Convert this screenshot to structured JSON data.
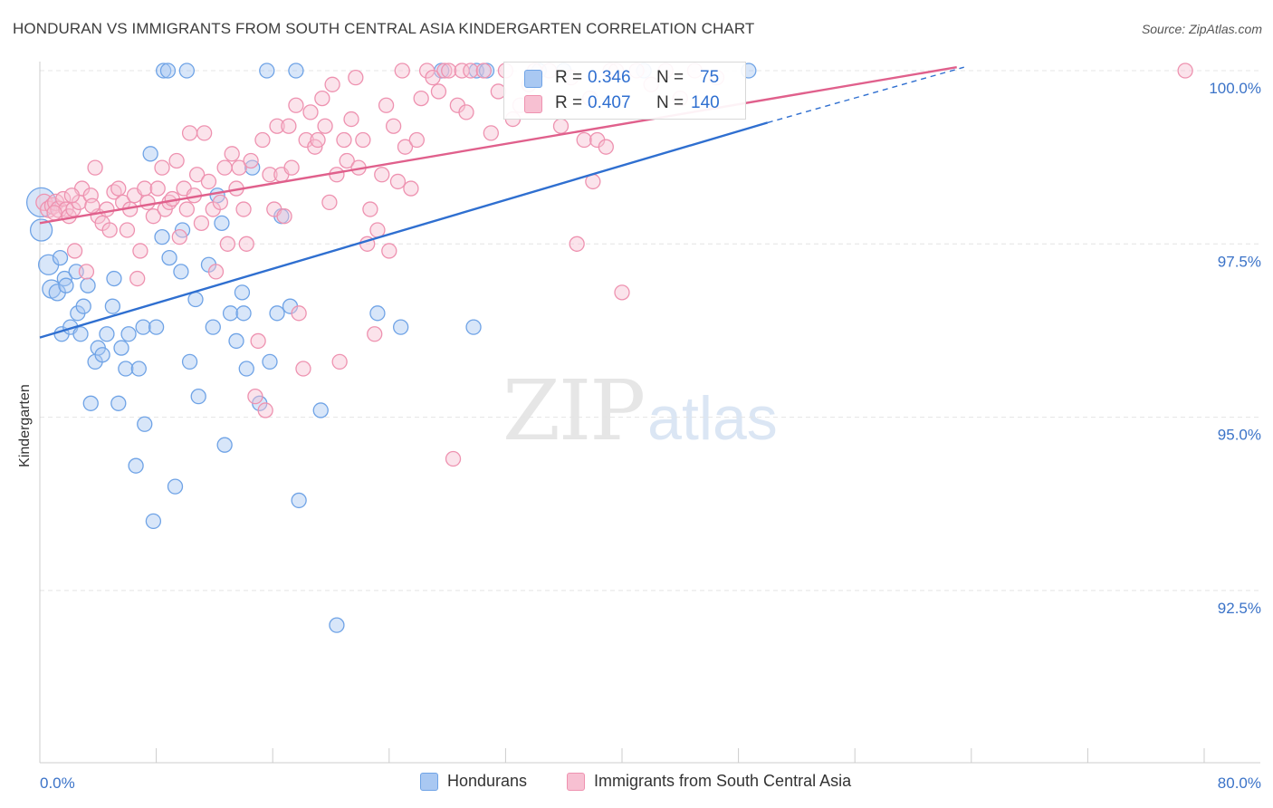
{
  "title": "HONDURAN VS IMMIGRANTS FROM SOUTH CENTRAL ASIA KINDERGARTEN CORRELATION CHART",
  "source": "Source: ZipAtlas.com",
  "watermark": {
    "zip": "ZIP",
    "atlas": "atlas"
  },
  "colors": {
    "blue": "#6fa3e6",
    "blue_fill": "#a9c8f2",
    "blue_line": "#2f6fd0",
    "pink": "#ee92b0",
    "pink_fill": "#f7c0d2",
    "pink_line": "#e0608c",
    "axis_text": "#3b73c8"
  },
  "legend": {
    "series1": {
      "r_label": "R =",
      "r_value": "0.346",
      "n_label": "N =",
      "n_value": "75"
    },
    "series2": {
      "r_label": "R =",
      "r_value": "0.407",
      "n_label": "N =",
      "n_value": "140"
    },
    "bottom1": "Hondurans",
    "bottom2": "Immigrants from South Central Asia"
  },
  "chart_data": {
    "type": "scatter",
    "title": "HONDURAN VS IMMIGRANTS FROM SOUTH CENTRAL ASIA KINDERGARTEN CORRELATION CHART",
    "xlabel": "",
    "ylabel": "Kindergarten",
    "xlim": [
      0,
      80
    ],
    "ylim": [
      90.0,
      100.5
    ],
    "x_tick_labels": [
      "0.0%",
      "80.0%"
    ],
    "y_ticks": [
      92.5,
      95.0,
      97.5,
      100.0
    ],
    "y_tick_labels": [
      "92.5%",
      "95.0%",
      "97.5%",
      "100.0%"
    ],
    "series": [
      {
        "name": "Hondurans",
        "color": "blue",
        "trend": {
          "x0": 0,
          "y0": 96.15,
          "x1": 50,
          "y1": 99.25,
          "dash_to_x": 63.5,
          "dash_to_y": 100.05
        },
        "points": [
          [
            0.1,
            98.1,
            16
          ],
          [
            0.1,
            97.7,
            12
          ],
          [
            0.6,
            97.2,
            11
          ],
          [
            0.8,
            96.85,
            10
          ],
          [
            1.2,
            96.8,
            9
          ],
          [
            1.4,
            97.3,
            8
          ],
          [
            1.5,
            96.2,
            8
          ],
          [
            1.7,
            97.0,
            8
          ],
          [
            1.8,
            96.9,
            8
          ],
          [
            2.1,
            96.3,
            8
          ],
          [
            2.5,
            97.1,
            8
          ],
          [
            2.6,
            96.5,
            8
          ],
          [
            2.8,
            96.2,
            8
          ],
          [
            3.0,
            96.6,
            8
          ],
          [
            3.3,
            96.9,
            8
          ],
          [
            3.5,
            95.2,
            8
          ],
          [
            3.8,
            95.8,
            8
          ],
          [
            4.0,
            96.0,
            8
          ],
          [
            4.3,
            95.9,
            8
          ],
          [
            4.6,
            96.2,
            8
          ],
          [
            5.0,
            96.6,
            8
          ],
          [
            5.1,
            97.0,
            8
          ],
          [
            5.4,
            95.2,
            8
          ],
          [
            5.6,
            96.0,
            8
          ],
          [
            5.9,
            95.7,
            8
          ],
          [
            6.1,
            96.2,
            8
          ],
          [
            6.6,
            94.3,
            8
          ],
          [
            6.8,
            95.7,
            8
          ],
          [
            7.1,
            96.3,
            8
          ],
          [
            7.2,
            94.9,
            8
          ],
          [
            7.6,
            98.8,
            8
          ],
          [
            7.8,
            93.5,
            8
          ],
          [
            8.0,
            96.3,
            8
          ],
          [
            8.4,
            97.6,
            8
          ],
          [
            8.5,
            100.0,
            8
          ],
          [
            8.8,
            100.0,
            8
          ],
          [
            8.9,
            97.3,
            8
          ],
          [
            9.3,
            94.0,
            8
          ],
          [
            9.7,
            97.1,
            8
          ],
          [
            9.8,
            97.7,
            8
          ],
          [
            10.1,
            100.0,
            8
          ],
          [
            10.3,
            95.8,
            8
          ],
          [
            10.7,
            96.7,
            8
          ],
          [
            10.9,
            95.3,
            8
          ],
          [
            11.6,
            97.2,
            8
          ],
          [
            11.9,
            96.3,
            8
          ],
          [
            12.2,
            98.2,
            8
          ],
          [
            12.5,
            97.8,
            8
          ],
          [
            12.7,
            94.6,
            8
          ],
          [
            13.1,
            96.5,
            8
          ],
          [
            13.5,
            96.1,
            8
          ],
          [
            13.9,
            96.8,
            8
          ],
          [
            14.0,
            96.5,
            8
          ],
          [
            14.2,
            95.7,
            8
          ],
          [
            14.6,
            98.6,
            8
          ],
          [
            15.1,
            95.2,
            8
          ],
          [
            15.6,
            100.0,
            8
          ],
          [
            15.8,
            95.8,
            8
          ],
          [
            16.3,
            96.5,
            8
          ],
          [
            16.6,
            97.9,
            8
          ],
          [
            17.2,
            96.6,
            8
          ],
          [
            17.6,
            100.0,
            8
          ],
          [
            17.8,
            93.8,
            8
          ],
          [
            19.3,
            95.1,
            8
          ],
          [
            20.4,
            92.0,
            8
          ],
          [
            23.2,
            96.5,
            8
          ],
          [
            24.8,
            96.3,
            8
          ],
          [
            27.6,
            100.0,
            8
          ],
          [
            30.0,
            100.0,
            8
          ],
          [
            30.7,
            100.0,
            8
          ],
          [
            34.3,
            100.0,
            8
          ],
          [
            36.0,
            100.0,
            8
          ],
          [
            41.5,
            100.0,
            8
          ],
          [
            48.7,
            100.0,
            8
          ],
          [
            29.8,
            96.3,
            8
          ]
        ]
      },
      {
        "name": "Immigrants from South Central Asia",
        "color": "pink",
        "trend": {
          "x0": 0,
          "y0": 97.8,
          "x1": 63,
          "y1": 100.05
        },
        "points": [
          [
            0.3,
            98.1,
            9
          ],
          [
            0.6,
            98.0,
            9
          ],
          [
            0.9,
            98.05,
            9
          ],
          [
            1.1,
            98.1,
            9
          ],
          [
            1.3,
            98.0,
            9
          ],
          [
            1.6,
            98.15,
            8
          ],
          [
            1.8,
            98.0,
            8
          ],
          [
            2.0,
            97.9,
            8
          ],
          [
            2.3,
            98.0,
            8
          ],
          [
            2.4,
            97.4,
            8
          ],
          [
            2.7,
            98.1,
            8
          ],
          [
            2.9,
            98.3,
            8
          ],
          [
            3.2,
            97.1,
            8
          ],
          [
            3.5,
            98.2,
            8
          ],
          [
            3.8,
            98.6,
            8
          ],
          [
            4.0,
            97.9,
            8
          ],
          [
            4.3,
            97.8,
            8
          ],
          [
            4.6,
            98.0,
            8
          ],
          [
            4.8,
            97.7,
            8
          ],
          [
            5.1,
            98.25,
            8
          ],
          [
            5.4,
            98.3,
            8
          ],
          [
            5.7,
            98.1,
            8
          ],
          [
            6.0,
            97.7,
            8
          ],
          [
            6.2,
            98.0,
            8
          ],
          [
            6.5,
            98.2,
            8
          ],
          [
            6.7,
            97.0,
            8
          ],
          [
            6.9,
            97.4,
            8
          ],
          [
            7.2,
            98.3,
            8
          ],
          [
            7.4,
            98.1,
            8
          ],
          [
            7.8,
            97.9,
            8
          ],
          [
            8.1,
            98.3,
            8
          ],
          [
            8.4,
            98.6,
            8
          ],
          [
            8.6,
            98.0,
            8
          ],
          [
            8.9,
            98.1,
            8
          ],
          [
            9.1,
            98.15,
            8
          ],
          [
            9.4,
            98.7,
            8
          ],
          [
            9.6,
            97.6,
            8
          ],
          [
            9.9,
            98.3,
            8
          ],
          [
            10.1,
            98.0,
            8
          ],
          [
            10.3,
            99.1,
            8
          ],
          [
            10.6,
            98.2,
            8
          ],
          [
            10.8,
            98.5,
            8
          ],
          [
            11.1,
            97.8,
            8
          ],
          [
            11.3,
            99.1,
            8
          ],
          [
            11.6,
            98.4,
            8
          ],
          [
            11.9,
            98.0,
            8
          ],
          [
            12.1,
            97.1,
            8
          ],
          [
            12.4,
            98.1,
            8
          ],
          [
            12.7,
            98.6,
            8
          ],
          [
            12.9,
            97.5,
            8
          ],
          [
            13.2,
            98.8,
            8
          ],
          [
            13.5,
            98.3,
            8
          ],
          [
            13.7,
            98.6,
            8
          ],
          [
            14.0,
            98.0,
            8
          ],
          [
            14.2,
            97.5,
            8
          ],
          [
            14.5,
            98.7,
            8
          ],
          [
            14.8,
            95.3,
            8
          ],
          [
            15.0,
            96.1,
            8
          ],
          [
            15.3,
            99.0,
            8
          ],
          [
            15.5,
            95.1,
            8
          ],
          [
            15.8,
            98.5,
            8
          ],
          [
            16.1,
            98.0,
            8
          ],
          [
            16.3,
            99.2,
            8
          ],
          [
            16.6,
            98.5,
            8
          ],
          [
            16.8,
            97.9,
            8
          ],
          [
            17.1,
            99.2,
            8
          ],
          [
            17.3,
            98.6,
            8
          ],
          [
            17.6,
            99.5,
            8
          ],
          [
            17.8,
            96.5,
            8
          ],
          [
            18.1,
            95.7,
            8
          ],
          [
            18.3,
            99.0,
            8
          ],
          [
            18.6,
            99.4,
            8
          ],
          [
            18.9,
            98.9,
            8
          ],
          [
            19.1,
            99.0,
            8
          ],
          [
            19.4,
            99.6,
            8
          ],
          [
            19.6,
            99.2,
            8
          ],
          [
            19.9,
            98.1,
            8
          ],
          [
            20.1,
            99.8,
            8
          ],
          [
            20.4,
            98.5,
            8
          ],
          [
            20.6,
            95.8,
            8
          ],
          [
            20.9,
            99.0,
            8
          ],
          [
            21.1,
            98.7,
            8
          ],
          [
            21.4,
            99.3,
            8
          ],
          [
            21.7,
            99.9,
            8
          ],
          [
            21.9,
            98.6,
            8
          ],
          [
            22.2,
            99.0,
            8
          ],
          [
            22.5,
            97.5,
            8
          ],
          [
            22.7,
            98.0,
            8
          ],
          [
            23.0,
            96.2,
            8
          ],
          [
            23.2,
            97.7,
            8
          ],
          [
            23.5,
            98.5,
            8
          ],
          [
            23.8,
            99.5,
            8
          ],
          [
            24.0,
            97.4,
            8
          ],
          [
            24.3,
            99.2,
            8
          ],
          [
            24.6,
            98.4,
            8
          ],
          [
            24.9,
            100.0,
            8
          ],
          [
            25.1,
            98.9,
            8
          ],
          [
            25.5,
            98.3,
            8
          ],
          [
            25.9,
            99.0,
            8
          ],
          [
            26.2,
            99.6,
            8
          ],
          [
            26.6,
            100.0,
            8
          ],
          [
            27.0,
            99.9,
            8
          ],
          [
            27.4,
            99.7,
            8
          ],
          [
            27.8,
            100.0,
            8
          ],
          [
            28.1,
            100.0,
            8
          ],
          [
            28.4,
            94.4,
            8
          ],
          [
            28.7,
            99.5,
            8
          ],
          [
            29.0,
            100.0,
            8
          ],
          [
            29.3,
            99.4,
            8
          ],
          [
            29.6,
            100.0,
            8
          ],
          [
            31.0,
            99.1,
            8
          ],
          [
            32.0,
            100.0,
            8
          ],
          [
            33.0,
            99.5,
            8
          ],
          [
            34.0,
            100.0,
            8
          ],
          [
            35.0,
            100.0,
            8
          ],
          [
            36.5,
            99.9,
            8
          ],
          [
            37.4,
            99.0,
            8
          ],
          [
            38.0,
            98.4,
            8
          ],
          [
            38.3,
            99.0,
            8
          ],
          [
            38.9,
            98.9,
            8
          ],
          [
            39.2,
            100.0,
            8
          ],
          [
            39.6,
            100.0,
            8
          ],
          [
            40.0,
            96.8,
            8
          ],
          [
            35.8,
            99.2,
            8
          ],
          [
            36.9,
            97.5,
            8
          ],
          [
            37.8,
            99.6,
            8
          ],
          [
            33.6,
            99.8,
            8
          ],
          [
            30.5,
            100.0,
            8
          ],
          [
            31.5,
            99.7,
            8
          ],
          [
            32.5,
            99.3,
            8
          ],
          [
            41.0,
            100.0,
            8
          ],
          [
            42.0,
            99.8,
            8
          ],
          [
            43.0,
            100.0,
            8
          ],
          [
            44.0,
            99.6,
            8
          ],
          [
            45.0,
            100.0,
            8
          ],
          [
            46.5,
            99.9,
            8
          ],
          [
            78.7,
            100.0,
            8
          ],
          [
            1.0,
            97.95,
            8
          ],
          [
            2.2,
            98.2,
            8
          ],
          [
            3.6,
            98.05,
            8
          ]
        ]
      }
    ]
  }
}
